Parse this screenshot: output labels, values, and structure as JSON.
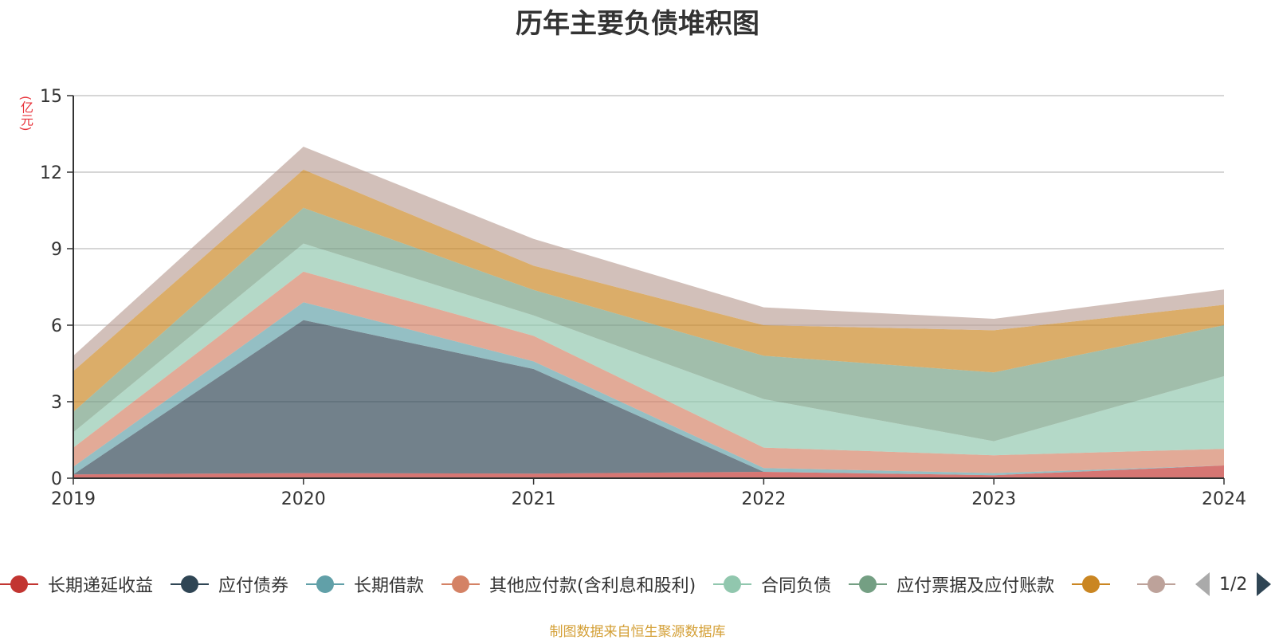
{
  "title": "历年主要负债堆积图",
  "y_unit": "(亿元)",
  "source": "制图数据来自恒生聚源数据库",
  "legend_pager": {
    "text": "1/2"
  },
  "chart_data": {
    "type": "area",
    "stacked": true,
    "title": "历年主要负债堆积图",
    "ylabel": "(亿元)",
    "xlabel": "",
    "x": [
      "2019",
      "2020",
      "2021",
      "2022",
      "2023",
      "2024"
    ],
    "ylim": [
      0,
      15
    ],
    "yticks": [
      0,
      3,
      6,
      9,
      12,
      15
    ],
    "grid": true,
    "legend_position": "bottom",
    "series": [
      {
        "name": "长期递延收益",
        "color": "#c23531",
        "values": [
          0.15,
          0.2,
          0.18,
          0.25,
          0.12,
          0.5
        ]
      },
      {
        "name": "应付债券",
        "color": "#2f4554",
        "values": [
          0,
          6.0,
          4.1,
          0,
          0,
          0
        ]
      },
      {
        "name": "长期借款",
        "color": "#61a0a8",
        "values": [
          0.3,
          0.7,
          0.3,
          0.15,
          0.08,
          0
        ]
      },
      {
        "name": "其他应付款(含利息和股利)",
        "color": "#d48265",
        "values": [
          0.75,
          1.2,
          1.0,
          0.8,
          0.7,
          0.65
        ]
      },
      {
        "name": "合同负债",
        "color": "#91c7ae",
        "values": [
          0.6,
          1.1,
          0.8,
          1.9,
          0.55,
          2.85
        ]
      },
      {
        "name": "应付票据及应付账款",
        "color": "#749f83",
        "values": [
          0.8,
          1.4,
          1.0,
          1.7,
          2.7,
          2.0
        ]
      },
      {
        "color": "#ca8622",
        "values": [
          1.6,
          1.5,
          0.95,
          1.2,
          1.65,
          0.8
        ]
      },
      {
        "color": "#bda29a",
        "values": [
          0.6,
          0.9,
          1.05,
          0.7,
          0.45,
          0.6
        ]
      }
    ]
  }
}
